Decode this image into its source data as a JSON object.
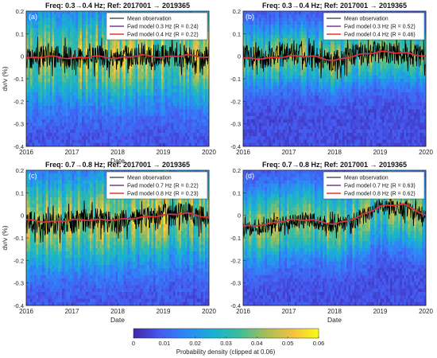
{
  "colors": {
    "background_low": "#2b2f8f",
    "mean_line": "#000000",
    "fwd_low": "#7a3f8f",
    "fwd_high": "#e8322e",
    "legend_box": "#ffffff",
    "colormap": [
      "#3e26a8",
      "#4659f0",
      "#2e87f7",
      "#17b1d2",
      "#3bbd9b",
      "#a3bd5a",
      "#f4c23e",
      "#f9fb15"
    ]
  },
  "colorbar": {
    "label": "Probability density (clipped at 0.06)",
    "ticks": [
      "0",
      "0.01",
      "0.02",
      "0.03",
      "0.04",
      "0.05",
      "0.06"
    ],
    "range": [
      0,
      0.06
    ]
  },
  "chart_data": [
    {
      "type": "line",
      "panel_label": "(a)",
      "title": "Freq: 0.3→0.4 Hz; Ref: 2017001 → 2019365",
      "xlabel": "Date",
      "ylabel": "dv/v (%)",
      "xlim": [
        2016,
        2020
      ],
      "ylim": [
        -0.4,
        0.2
      ],
      "xticks": [
        "2016",
        "2017",
        "2018",
        "2019",
        "2020"
      ],
      "yticks": [
        "-0.4",
        "-0.3",
        "-0.2",
        "-0.1",
        "0",
        "0.1",
        "0.2"
      ],
      "legend_position": "top-right",
      "grid": false,
      "x": [
        2016.0,
        2016.5,
        2017.0,
        2017.5,
        2018.0,
        2018.5,
        2019.0,
        2019.5,
        2020.0
      ],
      "series": [
        {
          "name": "Mean observation",
          "color": "#000000",
          "values": [
            -0.01,
            0.0,
            -0.01,
            0.0,
            -0.01,
            0.01,
            0.0,
            0.0,
            -0.01
          ]
        },
        {
          "name": "Fwd model 0.3 Hz (R = 0.24)",
          "color": "#7a3f8f",
          "values": [
            -0.01,
            0.0,
            -0.01,
            0.0,
            -0.01,
            0.005,
            -0.005,
            0.005,
            -0.005
          ]
        },
        {
          "name": "Fwd model 0.4 Hz (R = 0.22)",
          "color": "#e8322e",
          "values": [
            -0.01,
            0.0,
            -0.01,
            0.0,
            -0.01,
            0.005,
            -0.005,
            0.005,
            -0.005
          ]
        }
      ]
    },
    {
      "type": "line",
      "panel_label": "(b)",
      "title": "Freq: 0.3→0.4 Hz; Ref: 2017001 → 2019365",
      "xlabel": "",
      "ylabel": "",
      "xlim": [
        2016,
        2020
      ],
      "ylim": [
        -0.4,
        0.2
      ],
      "xticks": [
        "2016",
        "2017",
        "2018",
        "2019",
        "2020"
      ],
      "yticks": [
        "-0.4",
        "-0.3",
        "-0.2",
        "-0.1",
        "0",
        "0.1",
        "0.2"
      ],
      "legend_position": "top-right",
      "grid": false,
      "x": [
        2016.0,
        2016.5,
        2017.0,
        2017.5,
        2018.0,
        2018.5,
        2019.0,
        2019.5,
        2020.0
      ],
      "series": [
        {
          "name": "Mean observation",
          "color": "#000000",
          "values": [
            0.0,
            -0.01,
            0.01,
            0.0,
            -0.02,
            0.01,
            0.02,
            0.01,
            0.0
          ]
        },
        {
          "name": "Fwd model 0.3 Hz (R = 0.52)",
          "color": "#7a3f8f",
          "values": [
            -0.01,
            -0.01,
            0.0,
            0.0,
            -0.02,
            0.005,
            0.02,
            0.015,
            0.0
          ]
        },
        {
          "name": "Fwd model 0.4 Hz (R = 0.46)",
          "color": "#e8322e",
          "values": [
            -0.01,
            -0.01,
            0.0,
            0.0,
            -0.02,
            0.005,
            0.02,
            0.015,
            0.0
          ]
        }
      ]
    },
    {
      "type": "line",
      "panel_label": "(c)",
      "title": "Freq: 0.7→0.8 Hz; Ref: 2017001 → 2019365",
      "xlabel": "Date",
      "ylabel": "dv/v (%)",
      "xlim": [
        2016,
        2020
      ],
      "ylim": [
        -0.4,
        0.2
      ],
      "xticks": [
        "2016",
        "2017",
        "2018",
        "2019",
        "2020"
      ],
      "yticks": [
        "-0.4",
        "-0.3",
        "-0.2",
        "-0.1",
        "0",
        "0.1",
        "0.2"
      ],
      "legend_position": "top-right",
      "grid": false,
      "x": [
        2016.0,
        2016.5,
        2017.0,
        2017.5,
        2018.0,
        2018.5,
        2019.0,
        2019.5,
        2020.0
      ],
      "series": [
        {
          "name": "Mean observation",
          "color": "#000000",
          "values": [
            -0.03,
            -0.04,
            -0.03,
            -0.02,
            -0.03,
            -0.01,
            0.0,
            0.01,
            -0.02
          ]
        },
        {
          "name": "Fwd model 0.7 Hz (R = 0.22)",
          "color": "#7a3f8f",
          "values": [
            -0.02,
            -0.03,
            -0.02,
            -0.02,
            -0.02,
            -0.01,
            0.0,
            0.01,
            -0.01
          ]
        },
        {
          "name": "Fwd model 0.8 Hz (R = 0.23)",
          "color": "#e8322e",
          "values": [
            -0.02,
            -0.03,
            -0.02,
            -0.02,
            -0.02,
            -0.01,
            0.0,
            0.01,
            -0.01
          ]
        }
      ]
    },
    {
      "type": "line",
      "panel_label": "(d)",
      "title": "Freq: 0.7→0.8 Hz; Ref: 2017001 → 2019365",
      "xlabel": "Date",
      "ylabel": "",
      "xlim": [
        2016,
        2020
      ],
      "ylim": [
        -0.4,
        0.2
      ],
      "xticks": [
        "2016",
        "2017",
        "2018",
        "2019",
        "2020"
      ],
      "yticks": [
        "-0.4",
        "-0.3",
        "-0.2",
        "-0.1",
        "0",
        "0.1",
        "0.2"
      ],
      "legend_position": "top-right",
      "grid": false,
      "x": [
        2016.0,
        2016.5,
        2017.0,
        2017.5,
        2018.0,
        2018.5,
        2019.0,
        2019.5,
        2020.0
      ],
      "series": [
        {
          "name": "Mean observation",
          "color": "#000000",
          "values": [
            -0.06,
            -0.05,
            -0.03,
            -0.02,
            -0.05,
            -0.02,
            0.04,
            0.03,
            0.0
          ]
        },
        {
          "name": "Fwd model 0.7 Hz (R = 0.63)",
          "color": "#7a3f8f",
          "values": [
            -0.05,
            -0.04,
            -0.02,
            -0.02,
            -0.04,
            -0.01,
            0.04,
            0.05,
            0.0
          ]
        },
        {
          "name": "Fwd model 0.8 Hz (R = 0.62)",
          "color": "#e8322e",
          "values": [
            -0.05,
            -0.04,
            -0.02,
            -0.02,
            -0.04,
            -0.01,
            0.04,
            0.05,
            0.0
          ]
        }
      ]
    }
  ]
}
